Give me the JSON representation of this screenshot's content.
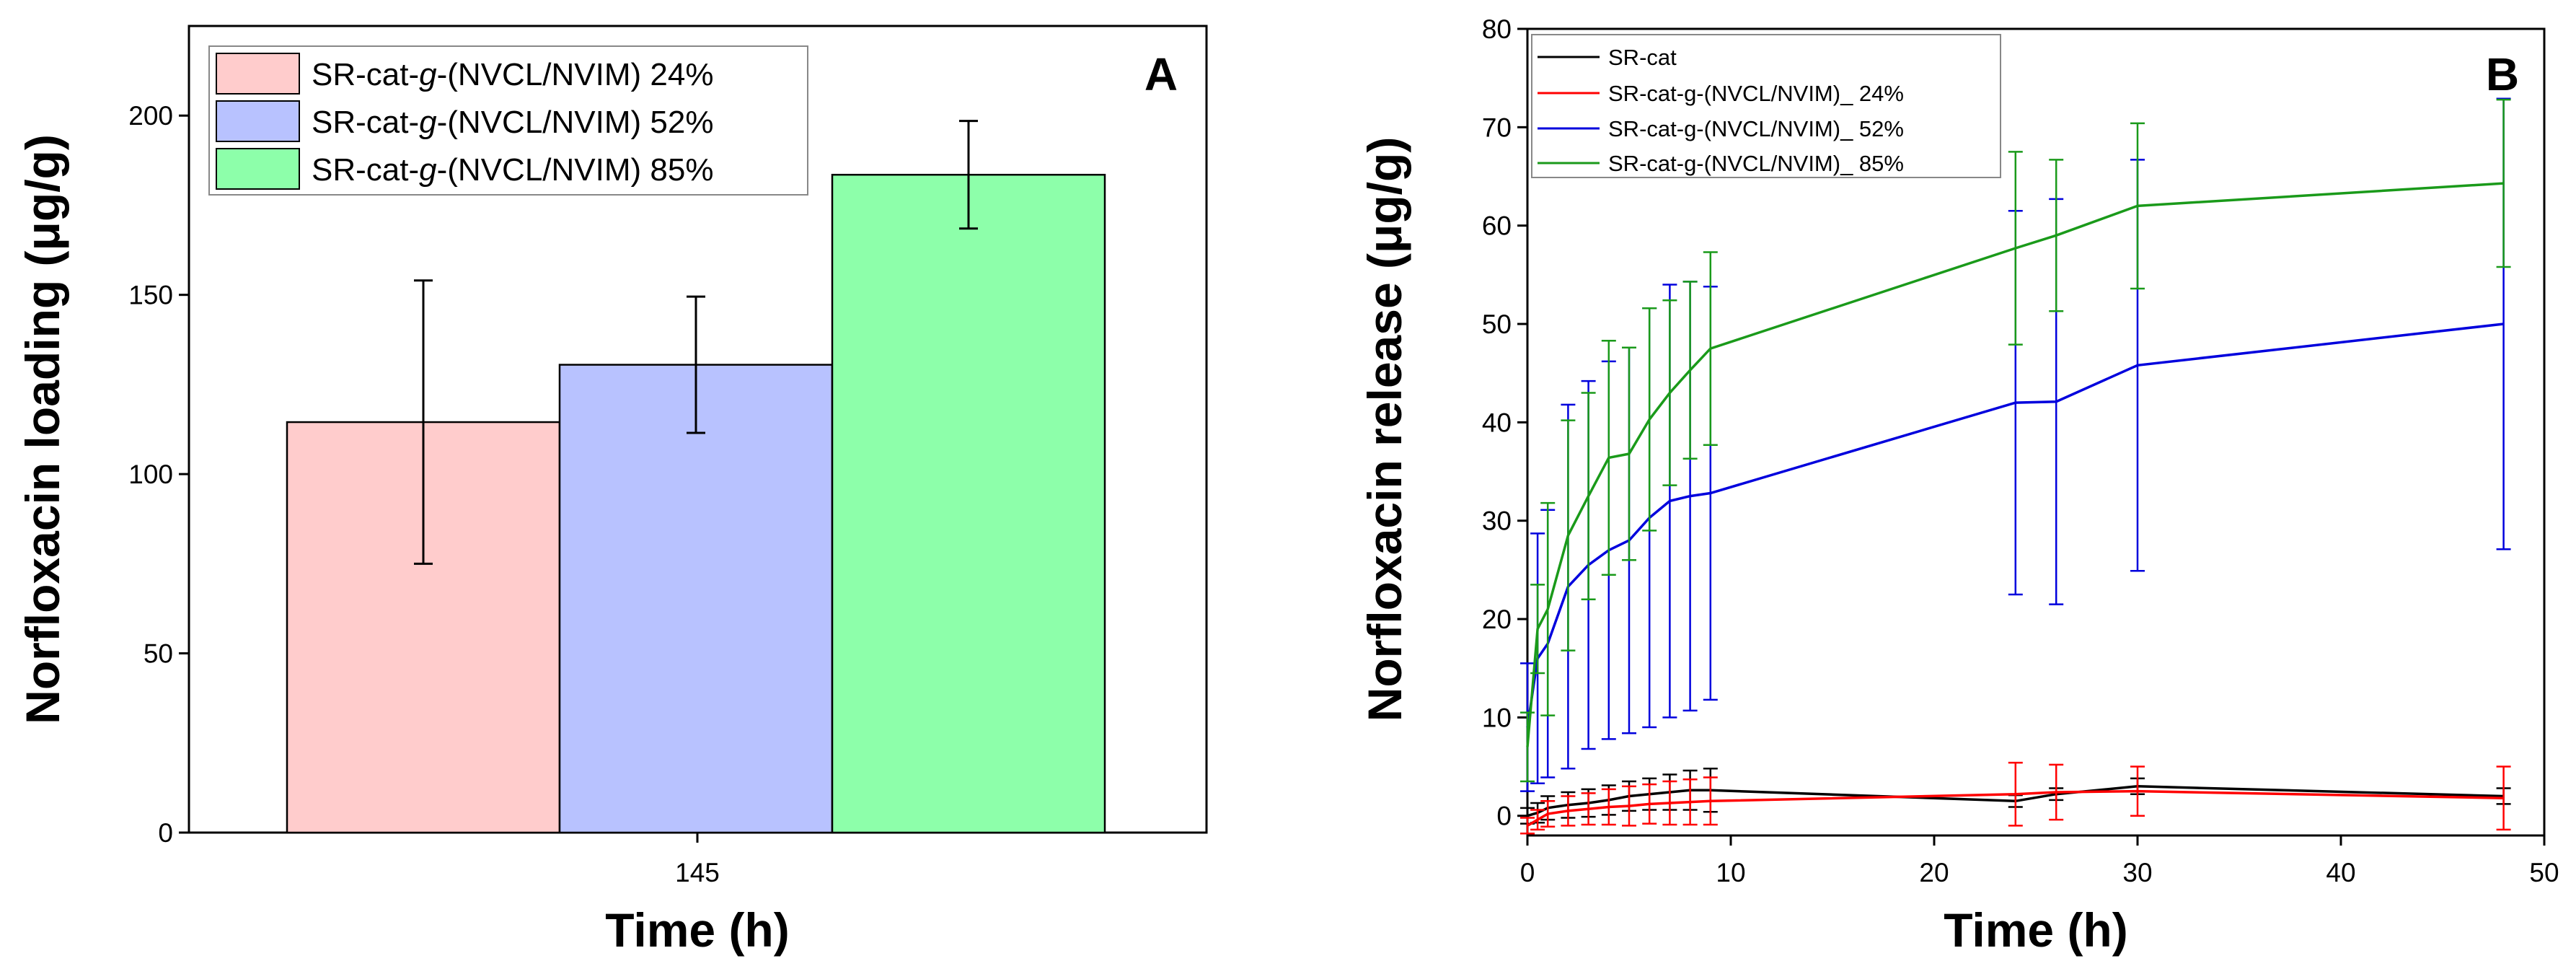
{
  "chart_data": [
    {
      "type": "bar",
      "panel": "A",
      "xlabel": "Time (h)",
      "ylabel": "Norfloxacin loading (μg/g)",
      "ylim": [
        0,
        225
      ],
      "yticks": [
        0,
        50,
        100,
        150,
        200
      ],
      "categories": [
        "145"
      ],
      "grid": false,
      "legend_position": "top-left",
      "series": [
        {
          "name_main": "SR-cat-",
          "name_g": "g",
          "name_rest": "-(NVCL/NVIM) 24%",
          "value": 114.5,
          "error": 39.5,
          "color": "#ffcccc"
        },
        {
          "name_main": "SR-cat-",
          "name_g": "g",
          "name_rest": "-(NVCL/NVIM) 52%",
          "value": 130.5,
          "error": 19.0,
          "color": "#b8c2ff"
        },
        {
          "name_main": "SR-cat-",
          "name_g": "g",
          "name_rest": "-(NVCL/NVIM) 85%",
          "value": 183.5,
          "error": 15.0,
          "color": "#8dffaa"
        }
      ]
    },
    {
      "type": "line",
      "panel": "B",
      "xlabel": "Time (h)",
      "ylabel": "Norfloxacin release (μg/g)",
      "xlim": [
        0,
        50
      ],
      "ylim": [
        -2,
        80
      ],
      "xticks": [
        0,
        10,
        20,
        30,
        40,
        50
      ],
      "yticks": [
        0,
        10,
        20,
        30,
        40,
        50,
        60,
        70,
        80
      ],
      "grid": false,
      "legend_position": "top-left",
      "series": [
        {
          "name": "SR-cat",
          "color": "#000000",
          "x": [
            0,
            0.5,
            1,
            2,
            3,
            4,
            5,
            6,
            7,
            8,
            9,
            24,
            26,
            30,
            48
          ],
          "y": [
            0,
            0.3,
            0.8,
            1.1,
            1.3,
            1.6,
            2.0,
            2.2,
            2.4,
            2.6,
            2.6,
            1.5,
            2.2,
            3.0,
            2.0
          ],
          "err": [
            0.8,
            1.0,
            1.2,
            1.3,
            1.4,
            1.5,
            1.5,
            1.6,
            1.8,
            2.0,
            2.2,
            0.6,
            0.6,
            0.8,
            0.8
          ]
        },
        {
          "name": "SR-cat-g-(NVCL/NVIM)_ 24%",
          "color": "#ff0000",
          "x": [
            0,
            0.5,
            1,
            2,
            3,
            4,
            5,
            6,
            7,
            8,
            9,
            24,
            26,
            30,
            48
          ],
          "y": [
            -1.0,
            -0.4,
            0.2,
            0.5,
            0.7,
            0.9,
            1.0,
            1.2,
            1.3,
            1.4,
            1.5,
            2.2,
            2.4,
            2.5,
            1.8
          ],
          "err": [
            0.8,
            1.0,
            1.3,
            1.5,
            1.6,
            1.8,
            2.0,
            2.0,
            2.2,
            2.3,
            2.4,
            3.2,
            2.8,
            2.5,
            3.2
          ]
        },
        {
          "name": "SR-cat-g-(NVCL/NVIM)_ 52%",
          "color": "#0000dd",
          "x": [
            0,
            0.5,
            1,
            2,
            3,
            4,
            5,
            6,
            7,
            8,
            9,
            24,
            26,
            30,
            48
          ],
          "y": [
            9.0,
            16.0,
            17.5,
            23.3,
            25.5,
            27.0,
            28.0,
            30.3,
            32.0,
            32.5,
            32.8,
            42.0,
            42.1,
            45.8,
            50.0
          ],
          "err": [
            6.5,
            12.7,
            13.6,
            18.5,
            18.7,
            19.2,
            19.6,
            21.3,
            22.0,
            21.8,
            21.0,
            19.5,
            20.6,
            20.9,
            22.9
          ]
        },
        {
          "name": "SR-cat-g-(NVCL/NVIM)_ 85%",
          "color": "#1a9a1a",
          "x": [
            0,
            0.5,
            1,
            2,
            3,
            4,
            5,
            6,
            7,
            8,
            9,
            24,
            26,
            30,
            48
          ],
          "y": [
            7.0,
            19.0,
            21.0,
            28.5,
            32.5,
            36.4,
            36.8,
            40.3,
            43.0,
            45.3,
            47.5,
            57.7,
            59.0,
            62.0,
            64.3
          ],
          "err": [
            3.5,
            4.5,
            10.8,
            11.7,
            10.5,
            11.9,
            10.8,
            11.3,
            9.4,
            9.0,
            9.8,
            9.8,
            7.7,
            8.4,
            8.5
          ]
        }
      ]
    }
  ]
}
